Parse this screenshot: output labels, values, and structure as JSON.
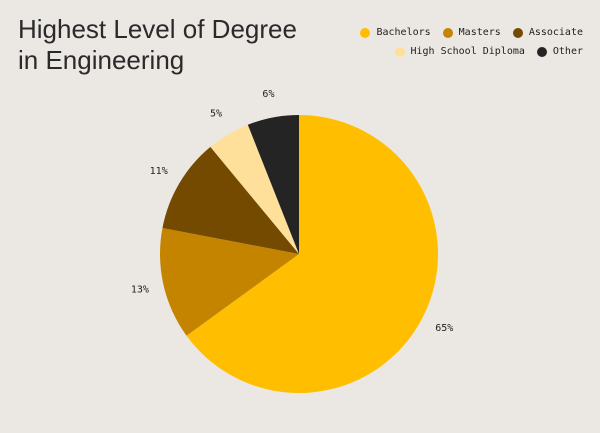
{
  "chart_data": {
    "type": "pie",
    "title_lines": [
      "Highest Level of Degree",
      "in Engineering"
    ],
    "categories": [
      "Bachelors",
      "Masters",
      "Associate",
      "High School Diploma",
      "Other"
    ],
    "values": [
      65,
      13,
      11,
      5,
      6
    ],
    "labels": [
      "65%",
      "13%",
      "11%",
      "5%",
      "6%"
    ],
    "colors": [
      "#ffbf00",
      "#c48400",
      "#744900",
      "#ffe09a",
      "#242424"
    ],
    "start": "12 o'clock",
    "direction": "clockwise",
    "legend_position": "top-right"
  }
}
